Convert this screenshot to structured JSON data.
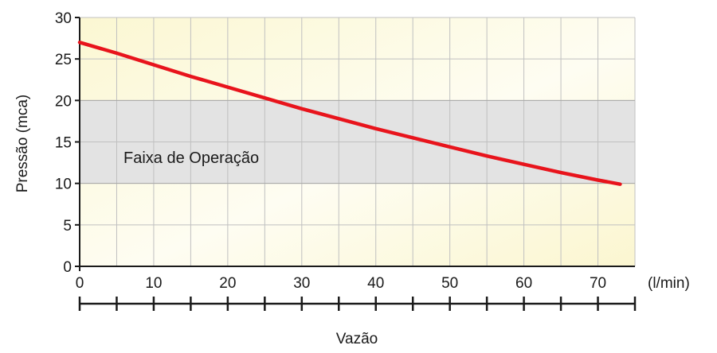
{
  "chart_data": {
    "type": "line",
    "title": "",
    "xlabel": "Vazão",
    "ylabel": "Pressão (mca)",
    "x_unit_label": "(l/min)",
    "xlim": [
      0,
      75
    ],
    "ylim": [
      0,
      30
    ],
    "x_ticks": [
      0,
      10,
      20,
      30,
      40,
      50,
      60,
      70
    ],
    "y_ticks": [
      0,
      5,
      10,
      15,
      20,
      25,
      30
    ],
    "grid": true,
    "series": [
      {
        "color": "#e8141c",
        "x": [
          0,
          5,
          10,
          15,
          20,
          25,
          30,
          35,
          40,
          45,
          50,
          55,
          60,
          65,
          70,
          73
        ],
        "y": [
          27.0,
          25.7,
          24.3,
          22.9,
          21.6,
          20.3,
          19.0,
          17.8,
          16.6,
          15.5,
          14.4,
          13.3,
          12.3,
          11.3,
          10.4,
          9.9
        ]
      }
    ],
    "annotations": [
      {
        "type": "band",
        "label": "Faixa de Operação",
        "y_from": 10,
        "y_to": 20,
        "color": "#e3e3e3"
      }
    ],
    "colors": {
      "plot_background": "#fdfbe3",
      "grid": "#c0c0c0",
      "axis": "#1a1a1a"
    }
  }
}
